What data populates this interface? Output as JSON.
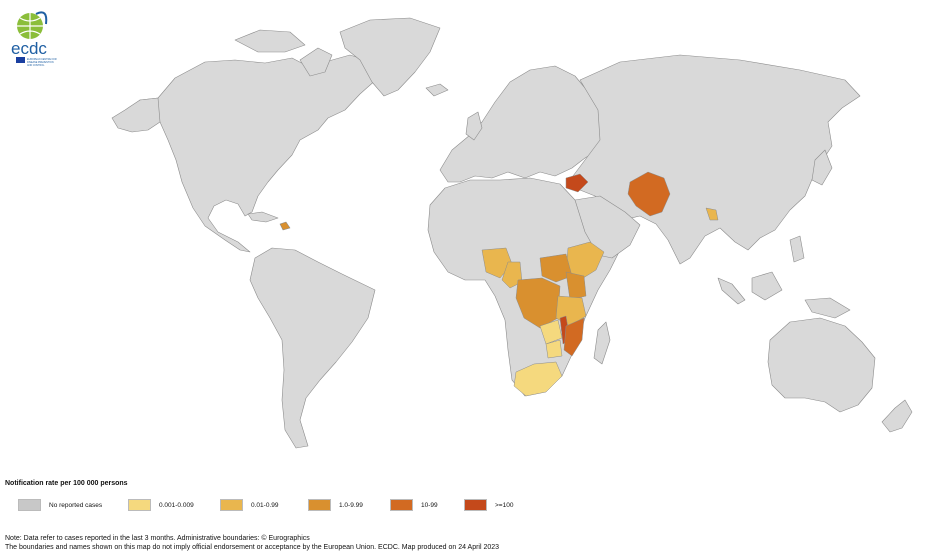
{
  "logo": {
    "text": "ecdc",
    "subtext": "EUROPEAN CENTRE FOR DISEASE PREVENTION AND CONTROL"
  },
  "legend": {
    "title": "Notification rate per 100 000 persons",
    "items": [
      {
        "label": "No reported cases",
        "color": "#c8c8c8"
      },
      {
        "label": "0.001-0.009",
        "color": "#f5d97e"
      },
      {
        "label": "0.01-0.99",
        "color": "#e9b64e"
      },
      {
        "label": "1.0-9.99",
        "color": "#d9902f"
      },
      {
        "label": "10-99",
        "color": "#d26a22"
      },
      {
        "label": ">=100",
        "color": "#c4491b"
      }
    ]
  },
  "notes": {
    "line1": "Note: Data refer to cases reported in the last 3 months. Administrative boundaries: © Eurographics",
    "line2": "The boundaries and names shown on this map do not imply official endorsement or acceptance by the European Union. ECDC. Map produced on 24 April 2023"
  },
  "map_colors": {
    "land": "#d9d9d9",
    "border": "#8c8c8c",
    "ocean": "#ffffff"
  }
}
